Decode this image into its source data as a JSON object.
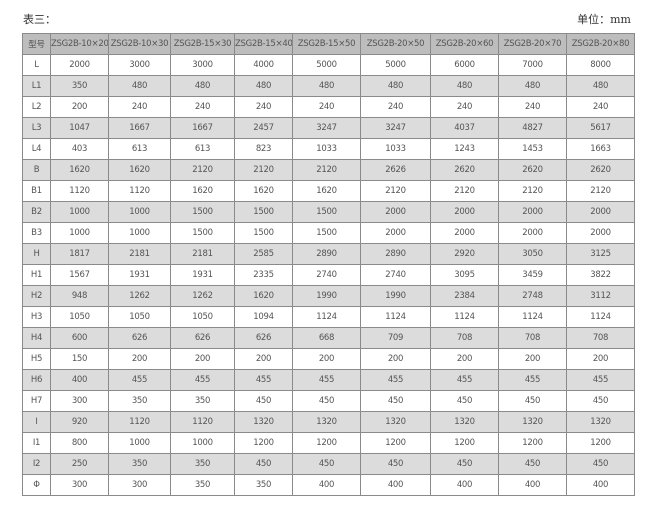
{
  "caption_left": "表三：",
  "caption_right": "单位：mm",
  "table": {
    "headers": [
      "型号",
      "ZSG2B-10×20",
      "ZSG2B-10×30",
      "ZSG2B-15×30",
      "ZSG2B-15×40",
      "ZSG2B-15×50",
      "ZSG2B-20×50",
      "ZSG2B-20×60",
      "ZSG2B-20×70",
      "ZSG2B-20×80"
    ],
    "rows": [
      [
        "L",
        "2000",
        "3000",
        "3000",
        "4000",
        "5000",
        "5000",
        "6000",
        "7000",
        "8000"
      ],
      [
        "L1",
        "350",
        "480",
        "480",
        "480",
        "480",
        "480",
        "480",
        "480",
        "480"
      ],
      [
        "L2",
        "200",
        "240",
        "240",
        "240",
        "240",
        "240",
        "240",
        "240",
        "240"
      ],
      [
        "L3",
        "1047",
        "1667",
        "1667",
        "2457",
        "3247",
        "3247",
        "4037",
        "4827",
        "5617"
      ],
      [
        "L4",
        "403",
        "613",
        "613",
        "823",
        "1033",
        "1033",
        "1243",
        "1453",
        "1663"
      ],
      [
        "B",
        "1620",
        "1620",
        "2120",
        "2120",
        "2120",
        "2626",
        "2620",
        "2620",
        "2620"
      ],
      [
        "B1",
        "1120",
        "1120",
        "1620",
        "1620",
        "1620",
        "2120",
        "2120",
        "2120",
        "2120"
      ],
      [
        "B2",
        "1000",
        "1000",
        "1500",
        "1500",
        "1500",
        "2000",
        "2000",
        "2000",
        "2000"
      ],
      [
        "B3",
        "1000",
        "1000",
        "1500",
        "1500",
        "1500",
        "2000",
        "2000",
        "2000",
        "2000"
      ],
      [
        "H",
        "1817",
        "2181",
        "2181",
        "2585",
        "2890",
        "2890",
        "2920",
        "3050",
        "3125"
      ],
      [
        "H1",
        "1567",
        "1931",
        "1931",
        "2335",
        "2740",
        "2740",
        "3095",
        "3459",
        "3822"
      ],
      [
        "H2",
        "948",
        "1262",
        "1262",
        "1620",
        "1990",
        "1990",
        "2384",
        "2748",
        "3112"
      ],
      [
        "H3",
        "1050",
        "1050",
        "1050",
        "1094",
        "1124",
        "1124",
        "1124",
        "1124",
        "1124"
      ],
      [
        "H4",
        "600",
        "626",
        "626",
        "626",
        "668",
        "709",
        "708",
        "708",
        "708"
      ],
      [
        "H5",
        "150",
        "200",
        "200",
        "200",
        "200",
        "200",
        "200",
        "200",
        "200"
      ],
      [
        "H6",
        "400",
        "455",
        "455",
        "455",
        "455",
        "455",
        "455",
        "455",
        "455"
      ],
      [
        "H7",
        "300",
        "350",
        "350",
        "450",
        "450",
        "450",
        "450",
        "450",
        "450"
      ],
      [
        "I",
        "920",
        "1120",
        "1120",
        "1320",
        "1320",
        "1320",
        "1320",
        "1320",
        "1320"
      ],
      [
        "I1",
        "800",
        "1000",
        "1000",
        "1200",
        "1200",
        "1200",
        "1200",
        "1200",
        "1200"
      ],
      [
        "I2",
        "250",
        "350",
        "350",
        "450",
        "450",
        "450",
        "450",
        "450",
        "450"
      ],
      [
        "Φ",
        "300",
        "300",
        "350",
        "350",
        "400",
        "400",
        "400",
        "400",
        "400"
      ]
    ]
  }
}
